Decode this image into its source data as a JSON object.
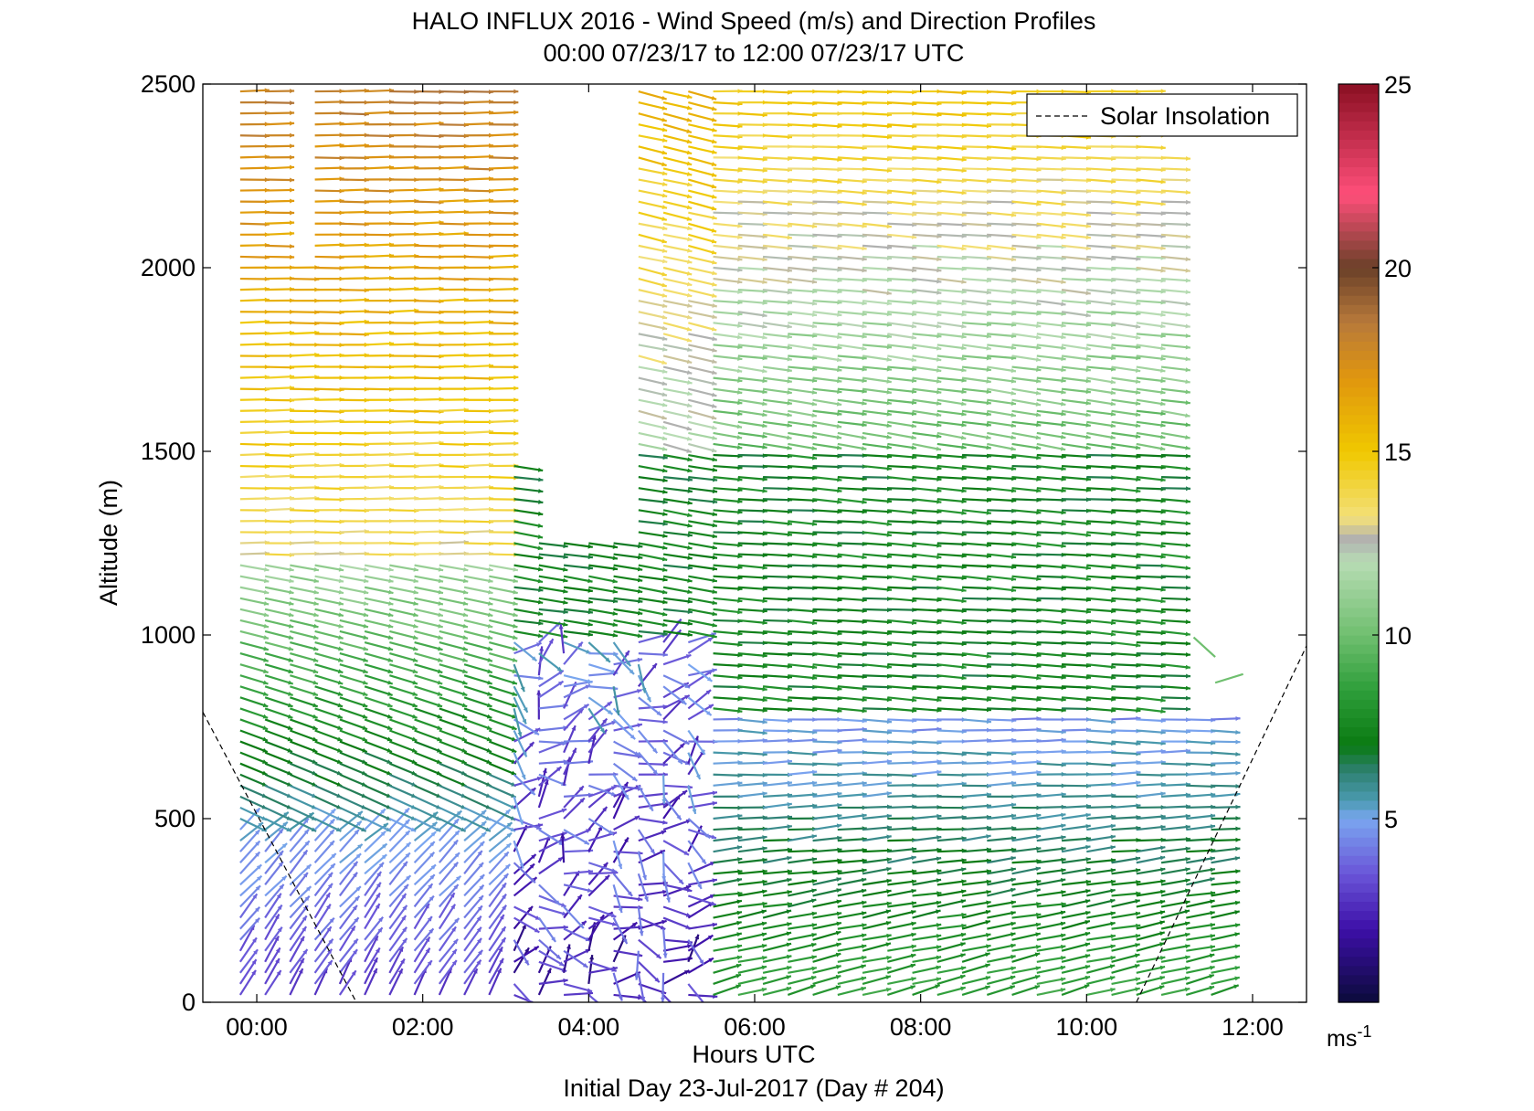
{
  "chart_data": {
    "type": "wind-barb profile (quiver) with colorbar",
    "title": "HALO INFLUX 2016 - Wind Speed (m/s) and Direction Profiles",
    "subtitle": "00:00 07/23/17 to 12:00 07/23/17  UTC",
    "xlabel": "Hours UTC",
    "xlabel2": "Initial Day 23-Jul-2017 (Day # 204)",
    "ylabel": "Altitude (m)",
    "xlim": [
      -0.65,
      12.65
    ],
    "ylim": [
      0,
      2500
    ],
    "x_ticks": [
      0,
      2,
      4,
      6,
      8,
      10,
      12
    ],
    "x_tick_labels": [
      "00:00",
      "02:00",
      "04:00",
      "06:00",
      "08:00",
      "10:00",
      "12:00"
    ],
    "y_ticks": [
      0,
      500,
      1000,
      1500,
      2000,
      2500
    ],
    "y_tick_labels": [
      "0",
      "500",
      "1000",
      "1500",
      "2000",
      "2500"
    ],
    "legend": {
      "position": "top-right",
      "entries": [
        {
          "label": "Solar Insolation",
          "style": "dashed",
          "color": "#000000"
        }
      ]
    },
    "colorbar": {
      "range": [
        0,
        25
      ],
      "ticks": [
        5,
        10,
        15,
        20,
        25
      ],
      "tick_labels": [
        "5",
        "10",
        "15",
        "20",
        "25"
      ],
      "unit_label": "ms",
      "unit_exponent": "-1",
      "stops": [
        {
          "v": 0,
          "color": "#0b0b3a"
        },
        {
          "v": 2,
          "color": "#3d0fa8"
        },
        {
          "v": 3.5,
          "color": "#6a55d8"
        },
        {
          "v": 5,
          "color": "#7aa6f0"
        },
        {
          "v": 5.5,
          "color": "#4a9ab0"
        },
        {
          "v": 6.3,
          "color": "#2e8070"
        },
        {
          "v": 7,
          "color": "#0a7a12"
        },
        {
          "v": 8.5,
          "color": "#2e9e3a"
        },
        {
          "v": 10,
          "color": "#6fbf6f"
        },
        {
          "v": 12,
          "color": "#b8dcb4"
        },
        {
          "v": 12.6,
          "color": "#b0b0b0"
        },
        {
          "v": 13.2,
          "color": "#f3e07a"
        },
        {
          "v": 15,
          "color": "#f0c800"
        },
        {
          "v": 17,
          "color": "#e0960e"
        },
        {
          "v": 18.5,
          "color": "#b87a3a"
        },
        {
          "v": 20,
          "color": "#6a4028"
        },
        {
          "v": 22,
          "color": "#ff4f7a"
        },
        {
          "v": 25,
          "color": "#8a0f22"
        }
      ]
    },
    "solar_insolation": {
      "style": "dashed",
      "segments": [
        [
          [
            -0.65,
            790
          ],
          [
            1.2,
            0
          ]
        ],
        [
          [
            10.6,
            0
          ],
          [
            12.65,
            970
          ]
        ]
      ]
    },
    "profile_times": [
      -0.2,
      0.1,
      0.4,
      0.7,
      1.0,
      1.3,
      1.6,
      1.9,
      2.2,
      2.5,
      2.8,
      3.1,
      3.4,
      3.7,
      4.0,
      4.3,
      4.6,
      4.9,
      5.2,
      5.5,
      5.8,
      6.1,
      6.4,
      6.7,
      7.0,
      7.3,
      7.6,
      7.9,
      8.2,
      8.5,
      8.8,
      9.1,
      9.4,
      9.7,
      10.0,
      10.3,
      10.6,
      10.9,
      11.2,
      11.5
    ],
    "altitude_step": 30,
    "summary_layers": [
      {
        "time_range": [
          "00:00",
          "03:00"
        ],
        "alt_range": [
          0,
          500
        ],
        "speed_ms": [
          2,
          5
        ],
        "direction": "northerly to north-westerly, light"
      },
      {
        "time_range": [
          "00:00",
          "03:00"
        ],
        "alt_range": [
          500,
          1200
        ],
        "speed_ms": [
          6,
          11
        ],
        "direction": "westerly to north-westerly"
      },
      {
        "time_range": [
          "00:00",
          "03:00"
        ],
        "alt_range": [
          1200,
          2500
        ],
        "speed_ms": [
          13,
          20
        ],
        "direction": "westerly"
      },
      {
        "time_range": [
          "03:00",
          "05:30"
        ],
        "alt_range": [
          0,
          1000
        ],
        "speed_ms": [
          1,
          5
        ],
        "direction": "variable, light"
      },
      {
        "time_range": [
          "03:00",
          "11:00"
        ],
        "alt_range": [
          1000,
          1500
        ],
        "speed_ms": [
          6,
          9
        ],
        "direction": "westerly"
      },
      {
        "time_range": [
          "04:30",
          "11:00"
        ],
        "alt_range": [
          1500,
          2500
        ],
        "speed_ms": [
          9,
          15
        ],
        "direction": "westerly to south-westerly"
      },
      {
        "time_range": [
          "05:30",
          "11:45"
        ],
        "alt_range": [
          0,
          750
        ],
        "speed_ms": [
          3,
          8
        ],
        "direction": "westerly to south-westerly"
      }
    ],
    "data_gaps": [
      {
        "time_range": [
          "03:30",
          "04:20"
        ],
        "alt_range": [
          1250,
          2500
        ]
      },
      {
        "time_range": [
          "11:00",
          "11:45"
        ],
        "alt_range": [
          800,
          2500
        ]
      }
    ]
  }
}
